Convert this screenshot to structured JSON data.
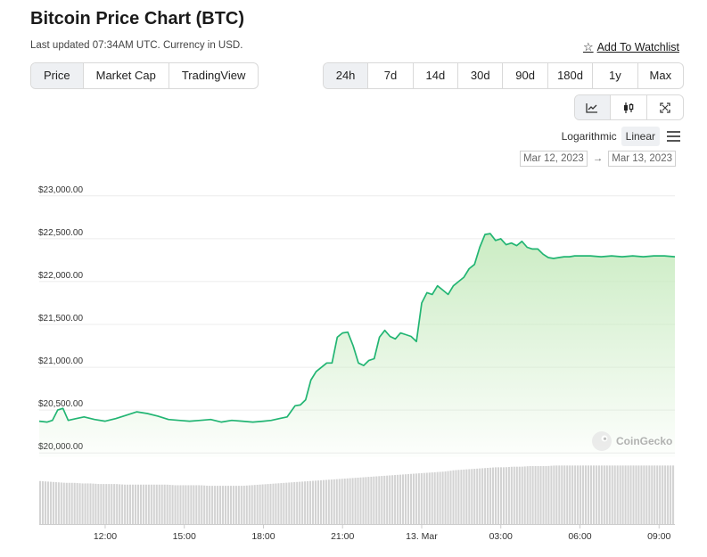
{
  "header": {
    "title": "Bitcoin Price Chart (BTC)",
    "subtitle": "Last updated 07:34AM UTC. Currency in USD.",
    "watchlist_label": "Add To Watchlist"
  },
  "view_tabs": [
    {
      "label": "Price",
      "active": true
    },
    {
      "label": "Market Cap",
      "active": false
    },
    {
      "label": "TradingView",
      "active": false
    }
  ],
  "range_tabs": [
    {
      "label": "24h",
      "active": true
    },
    {
      "label": "7d",
      "active": false
    },
    {
      "label": "14d",
      "active": false
    },
    {
      "label": "30d",
      "active": false
    },
    {
      "label": "90d",
      "active": false
    },
    {
      "label": "180d",
      "active": false
    },
    {
      "label": "1y",
      "active": false
    },
    {
      "label": "Max",
      "active": false
    }
  ],
  "chart_types": [
    {
      "icon": "line-chart-icon",
      "active": true
    },
    {
      "icon": "candlestick-icon",
      "active": false
    },
    {
      "icon": "fullscreen-icon",
      "active": false
    }
  ],
  "scale": {
    "logarithmic_label": "Logarithmic",
    "linear_label": "Linear",
    "active": "linear"
  },
  "date_range": {
    "from": "Mar 12, 2023",
    "to": "Mar 13, 2023",
    "arrow": "→"
  },
  "watermark": "CoinGecko",
  "colors": {
    "line": "#22b573",
    "fill_top": "#c8ebc0",
    "volume": "#d0d0d0",
    "active_bg": "#eef0f3"
  },
  "chart_data": {
    "type": "area",
    "title": "",
    "xlabel": "",
    "ylabel": "",
    "ylim": [
      19950,
      23050
    ],
    "y_ticks": [
      "$20,000.00",
      "$20,500.00",
      "$21,000.00",
      "$21,500.00",
      "$22,000.00",
      "$22,500.00",
      "$23,000.00"
    ],
    "y_tick_values": [
      20000,
      20500,
      21000,
      21500,
      22000,
      22500,
      23000
    ],
    "x_ticks": [
      "12:00",
      "15:00",
      "18:00",
      "21:00",
      "13. Mar",
      "03:00",
      "06:00",
      "09:00"
    ],
    "x_tick_hours": [
      12,
      15,
      18,
      21,
      24,
      27,
      30,
      33
    ],
    "xlim_hours": [
      9.5,
      33.6
    ],
    "series": [
      {
        "x_hours": [
          9.5,
          9.8,
          10.0,
          10.2,
          10.4,
          10.6,
          10.9,
          11.2,
          11.6,
          12.0,
          12.4,
          12.8,
          13.2,
          13.6,
          14.0,
          14.4,
          14.8,
          15.2,
          15.6,
          16.0,
          16.4,
          16.8,
          17.2,
          17.6,
          18.0,
          18.3,
          18.6,
          18.9,
          19.2,
          19.4,
          19.6,
          19.8,
          20.0,
          20.2,
          20.4,
          20.6,
          20.8,
          21.0,
          21.2,
          21.4,
          21.6,
          21.8,
          22.0,
          22.2,
          22.4,
          22.6,
          22.8,
          23.0,
          23.2,
          23.4,
          23.6,
          23.8,
          24.0,
          24.2,
          24.4,
          24.6,
          24.8,
          25.0,
          25.2,
          25.4,
          25.6,
          25.8,
          26.0,
          26.2,
          26.4,
          26.6,
          26.8,
          27.0,
          27.2,
          27.4,
          27.6,
          27.8,
          28.0,
          28.2,
          28.4,
          28.6,
          28.8,
          29.0,
          29.2,
          29.4,
          29.6,
          29.8,
          30.0,
          30.4,
          30.8,
          31.2,
          31.6,
          32.0,
          32.4,
          32.8,
          33.2,
          33.6
        ],
        "values": [
          20370,
          20360,
          20380,
          20500,
          20520,
          20380,
          20400,
          20420,
          20390,
          20370,
          20400,
          20440,
          20480,
          20460,
          20430,
          20390,
          20380,
          20370,
          20380,
          20390,
          20360,
          20380,
          20370,
          20360,
          20370,
          20380,
          20400,
          20420,
          20550,
          20560,
          20620,
          20850,
          20950,
          21000,
          21050,
          21050,
          21350,
          21400,
          21410,
          21250,
          21050,
          21020,
          21080,
          21100,
          21350,
          21430,
          21360,
          21330,
          21400,
          21380,
          21360,
          21300,
          21750,
          21870,
          21850,
          21950,
          21900,
          21850,
          21950,
          22000,
          22050,
          22150,
          22200,
          22400,
          22550,
          22560,
          22480,
          22500,
          22430,
          22450,
          22420,
          22470,
          22400,
          22380,
          22380,
          22320,
          22280,
          22270,
          22280,
          22290,
          22290,
          22300,
          22300,
          22300,
          22290,
          22300,
          22290,
          22300,
          22290,
          22300,
          22300,
          22290
        ]
      }
    ],
    "volume_relative": [
      0.72,
      0.71,
      0.7,
      0.69,
      0.69,
      0.68,
      0.68,
      0.67,
      0.67,
      0.67,
      0.66,
      0.66,
      0.66,
      0.66,
      0.66,
      0.66,
      0.65,
      0.65,
      0.65,
      0.65,
      0.64,
      0.64,
      0.64,
      0.64,
      0.64,
      0.65,
      0.66,
      0.67,
      0.68,
      0.69,
      0.7,
      0.71,
      0.72,
      0.73,
      0.74,
      0.75,
      0.76,
      0.77,
      0.78,
      0.79,
      0.8,
      0.81,
      0.82,
      0.83,
      0.84,
      0.85,
      0.86,
      0.87,
      0.88,
      0.9,
      0.91,
      0.92,
      0.93,
      0.94,
      0.95,
      0.95,
      0.96,
      0.96,
      0.97,
      0.97,
      0.97,
      0.98,
      0.98,
      0.98,
      0.98,
      0.98,
      0.98,
      0.98,
      0.98,
      0.98,
      0.98,
      0.98,
      0.98,
      0.98,
      0.98,
      0.98
    ]
  }
}
